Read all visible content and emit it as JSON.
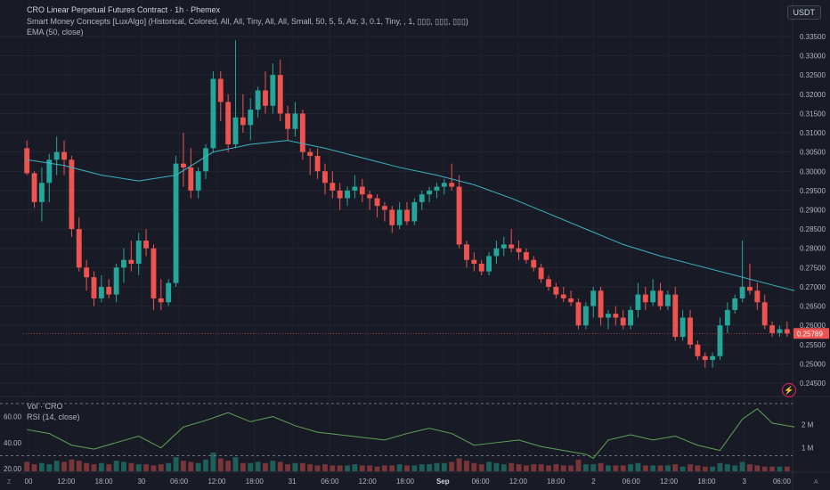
{
  "header": {
    "title": "CRO Linear Perpetual Futures Contract · 1h · Phemex",
    "indicator_smc": "Smart Money Concepts [LuxAlgo] (Historical, Colored, All, All, Tiny, All, All, Small, 50, 5, 5, Atr, 3, 0.1, Tiny, , 1, ▯▯▯, ▯▯▯, ▯▯▯)",
    "indicator_ema": "EMA (50, close)",
    "currency": "USDT"
  },
  "lower_pane": {
    "vol_label": "Vol · CRO",
    "rsi_label": "RSI (14, close)",
    "rsi_ticks": [
      "60.00",
      "40.00",
      "20.00"
    ],
    "vol_ticks": [
      "2 M",
      "1 M"
    ]
  },
  "price_ticks": [
    "0.33500",
    "0.33000",
    "0.32500",
    "0.32000",
    "0.31500",
    "0.31000",
    "0.30500",
    "0.30000",
    "0.29500",
    "0.29000",
    "0.28500",
    "0.28000",
    "0.27500",
    "0.27000",
    "0.26500",
    "0.26000",
    "0.25500",
    "0.25000",
    "0.24500"
  ],
  "last_price": "0.25789",
  "time_ticks": [
    "00",
    "12:00",
    "18:00",
    "30",
    "06:00",
    "12:00",
    "18:00",
    "31",
    "06:00",
    "12:00",
    "18:00",
    "Sep",
    "06:00",
    "12:00",
    "18:00",
    "2",
    "06:00",
    "12:00",
    "18:00",
    "3",
    "06:00"
  ],
  "edge_labels": {
    "z": "Z",
    "a": "A"
  },
  "colors": {
    "up": "#26a69a",
    "down": "#ef5350",
    "ema": "#3bb3c3",
    "rsi": "#5fa356",
    "background": "#181b25"
  },
  "chart_data": {
    "type": "candlestick",
    "title": "CRO Linear Perpetual Futures Contract · 1h · Phemex",
    "ylim": [
      0.242,
      0.338
    ],
    "candles": [
      [
        0.306,
        0.308,
        0.299,
        0.2995
      ],
      [
        0.2995,
        0.3,
        0.2905,
        0.292
      ],
      [
        0.292,
        0.301,
        0.287,
        0.297
      ],
      [
        0.297,
        0.3045,
        0.292,
        0.303
      ],
      [
        0.303,
        0.309,
        0.299,
        0.305
      ],
      [
        0.305,
        0.308,
        0.299,
        0.303
      ],
      [
        0.303,
        0.304,
        0.283,
        0.285
      ],
      [
        0.285,
        0.288,
        0.274,
        0.275
      ],
      [
        0.275,
        0.277,
        0.269,
        0.2725
      ],
      [
        0.2725,
        0.274,
        0.265,
        0.267
      ],
      [
        0.267,
        0.273,
        0.266,
        0.27
      ],
      [
        0.27,
        0.272,
        0.267,
        0.268
      ],
      [
        0.268,
        0.276,
        0.266,
        0.275
      ],
      [
        0.275,
        0.28,
        0.271,
        0.277
      ],
      [
        0.277,
        0.282,
        0.274,
        0.276
      ],
      [
        0.276,
        0.284,
        0.273,
        0.282
      ],
      [
        0.282,
        0.285,
        0.278,
        0.28
      ],
      [
        0.28,
        0.281,
        0.264,
        0.267
      ],
      [
        0.267,
        0.272,
        0.264,
        0.266
      ],
      [
        0.266,
        0.272,
        0.265,
        0.271
      ],
      [
        0.271,
        0.304,
        0.27,
        0.302
      ],
      [
        0.302,
        0.31,
        0.296,
        0.301
      ],
      [
        0.301,
        0.306,
        0.293,
        0.295
      ],
      [
        0.295,
        0.301,
        0.293,
        0.3
      ],
      [
        0.3,
        0.307,
        0.298,
        0.306
      ],
      [
        0.306,
        0.326,
        0.305,
        0.324
      ],
      [
        0.324,
        0.326,
        0.313,
        0.318
      ],
      [
        0.318,
        0.32,
        0.305,
        0.307
      ],
      [
        0.307,
        0.334,
        0.306,
        0.314
      ],
      [
        0.314,
        0.32,
        0.31,
        0.312
      ],
      [
        0.312,
        0.319,
        0.308,
        0.316
      ],
      [
        0.316,
        0.322,
        0.314,
        0.321
      ],
      [
        0.321,
        0.326,
        0.315,
        0.317
      ],
      [
        0.317,
        0.328,
        0.315,
        0.325
      ],
      [
        0.325,
        0.329,
        0.313,
        0.315
      ],
      [
        0.315,
        0.317,
        0.308,
        0.311
      ],
      [
        0.311,
        0.318,
        0.309,
        0.315
      ],
      [
        0.315,
        0.316,
        0.303,
        0.305
      ],
      [
        0.305,
        0.306,
        0.299,
        0.304
      ],
      [
        0.304,
        0.306,
        0.298,
        0.3
      ],
      [
        0.3,
        0.302,
        0.294,
        0.297
      ],
      [
        0.297,
        0.3,
        0.293,
        0.295
      ],
      [
        0.295,
        0.297,
        0.29,
        0.293
      ],
      [
        0.293,
        0.296,
        0.291,
        0.295
      ],
      [
        0.295,
        0.299,
        0.293,
        0.296
      ],
      [
        0.296,
        0.298,
        0.292,
        0.294
      ],
      [
        0.294,
        0.295,
        0.29,
        0.293
      ],
      [
        0.293,
        0.294,
        0.288,
        0.291
      ],
      [
        0.291,
        0.292,
        0.287,
        0.29
      ],
      [
        0.29,
        0.291,
        0.284,
        0.286
      ],
      [
        0.286,
        0.292,
        0.285,
        0.29
      ],
      [
        0.29,
        0.292,
        0.286,
        0.287
      ],
      [
        0.287,
        0.293,
        0.286,
        0.292
      ],
      [
        0.292,
        0.295,
        0.29,
        0.294
      ],
      [
        0.294,
        0.296,
        0.292,
        0.295
      ],
      [
        0.295,
        0.297,
        0.293,
        0.296
      ],
      [
        0.296,
        0.298,
        0.294,
        0.297
      ],
      [
        0.297,
        0.302,
        0.295,
        0.296
      ],
      [
        0.296,
        0.299,
        0.28,
        0.281
      ],
      [
        0.281,
        0.282,
        0.275,
        0.277
      ],
      [
        0.277,
        0.279,
        0.274,
        0.276
      ],
      [
        0.276,
        0.277,
        0.273,
        0.274
      ],
      [
        0.274,
        0.279,
        0.273,
        0.278
      ],
      [
        0.278,
        0.282,
        0.276,
        0.28
      ],
      [
        0.28,
        0.283,
        0.278,
        0.281
      ],
      [
        0.281,
        0.285,
        0.279,
        0.28
      ],
      [
        0.28,
        0.282,
        0.277,
        0.279
      ],
      [
        0.279,
        0.28,
        0.276,
        0.277
      ],
      [
        0.277,
        0.278,
        0.274,
        0.275
      ],
      [
        0.275,
        0.276,
        0.271,
        0.272
      ],
      [
        0.272,
        0.273,
        0.269,
        0.27
      ],
      [
        0.27,
        0.271,
        0.267,
        0.268
      ],
      [
        0.268,
        0.27,
        0.266,
        0.267
      ],
      [
        0.267,
        0.269,
        0.265,
        0.266
      ],
      [
        0.266,
        0.267,
        0.259,
        0.26
      ],
      [
        0.26,
        0.266,
        0.259,
        0.265
      ],
      [
        0.265,
        0.27,
        0.262,
        0.269
      ],
      [
        0.269,
        0.27,
        0.26,
        0.262
      ],
      [
        0.262,
        0.264,
        0.259,
        0.263
      ],
      [
        0.263,
        0.265,
        0.26,
        0.262
      ],
      [
        0.262,
        0.264,
        0.259,
        0.26
      ],
      [
        0.26,
        0.265,
        0.259,
        0.264
      ],
      [
        0.264,
        0.271,
        0.262,
        0.268
      ],
      [
        0.268,
        0.27,
        0.264,
        0.266
      ],
      [
        0.266,
        0.272,
        0.265,
        0.269
      ],
      [
        0.269,
        0.271,
        0.264,
        0.265
      ],
      [
        0.265,
        0.269,
        0.264,
        0.268
      ],
      [
        0.268,
        0.27,
        0.256,
        0.257
      ],
      [
        0.257,
        0.264,
        0.256,
        0.262
      ],
      [
        0.262,
        0.264,
        0.254,
        0.255
      ],
      [
        0.255,
        0.256,
        0.251,
        0.252
      ],
      [
        0.252,
        0.253,
        0.249,
        0.251
      ],
      [
        0.251,
        0.253,
        0.249,
        0.252
      ],
      [
        0.252,
        0.262,
        0.251,
        0.26
      ],
      [
        0.26,
        0.266,
        0.258,
        0.264
      ],
      [
        0.264,
        0.268,
        0.263,
        0.267
      ],
      [
        0.267,
        0.282,
        0.266,
        0.27
      ],
      [
        0.27,
        0.276,
        0.268,
        0.269
      ],
      [
        0.269,
        0.271,
        0.264,
        0.266
      ],
      [
        0.266,
        0.268,
        0.259,
        0.26
      ],
      [
        0.26,
        0.261,
        0.257,
        0.258
      ],
      [
        0.258,
        0.26,
        0.257,
        0.259
      ],
      [
        0.259,
        0.261,
        0.257,
        0.2579
      ]
    ],
    "ema_50": [
      [
        0,
        0.303
      ],
      [
        5,
        0.3015
      ],
      [
        10,
        0.299
      ],
      [
        15,
        0.2975
      ],
      [
        20,
        0.299
      ],
      [
        25,
        0.305
      ],
      [
        30,
        0.307
      ],
      [
        35,
        0.308
      ],
      [
        40,
        0.306
      ],
      [
        45,
        0.3035
      ],
      [
        50,
        0.301
      ],
      [
        55,
        0.299
      ],
      [
        60,
        0.2965
      ],
      [
        65,
        0.293
      ],
      [
        70,
        0.289
      ],
      [
        75,
        0.285
      ],
      [
        80,
        0.281
      ],
      [
        85,
        0.278
      ],
      [
        90,
        0.2755
      ],
      [
        95,
        0.273
      ],
      [
        100,
        0.2705
      ],
      [
        103,
        0.269
      ]
    ],
    "rsi_14": {
      "ylim": [
        18,
        72
      ],
      "points": [
        [
          0,
          50
        ],
        [
          3,
          47
        ],
        [
          6,
          38
        ],
        [
          9,
          35
        ],
        [
          12,
          40
        ],
        [
          15,
          45
        ],
        [
          18,
          36
        ],
        [
          21,
          52
        ],
        [
          24,
          57
        ],
        [
          27,
          63
        ],
        [
          30,
          56
        ],
        [
          33,
          60
        ],
        [
          36,
          53
        ],
        [
          39,
          48
        ],
        [
          42,
          46
        ],
        [
          45,
          44
        ],
        [
          48,
          42
        ],
        [
          51,
          47
        ],
        [
          54,
          51
        ],
        [
          57,
          47
        ],
        [
          60,
          38
        ],
        [
          63,
          40
        ],
        [
          66,
          42
        ],
        [
          69,
          37
        ],
        [
          72,
          34
        ],
        [
          75,
          31
        ],
        [
          76,
          28
        ],
        [
          78,
          42
        ],
        [
          81,
          46
        ],
        [
          84,
          42
        ],
        [
          87,
          45
        ],
        [
          90,
          38
        ],
        [
          93,
          34
        ],
        [
          96,
          58
        ],
        [
          98,
          66
        ],
        [
          100,
          55
        ],
        [
          103,
          52
        ]
      ]
    },
    "volume": {
      "ylim": [
        0,
        3000000
      ],
      "values": [
        400000,
        300000,
        350000,
        300000,
        450000,
        400000,
        500000,
        450000,
        350000,
        300000,
        350000,
        300000,
        450000,
        400000,
        350000,
        300000,
        300000,
        250000,
        300000,
        350000,
        600000,
        450000,
        400000,
        350000,
        500000,
        800000,
        550000,
        450000,
        600000,
        350000,
        350000,
        400000,
        350000,
        450000,
        400000,
        300000,
        350000,
        350000,
        300000,
        250000,
        300000,
        250000,
        250000,
        250000,
        300000,
        250000,
        250000,
        200000,
        250000,
        250000,
        300000,
        250000,
        250000,
        300000,
        300000,
        350000,
        350000,
        400000,
        550000,
        450000,
        350000,
        300000,
        400000,
        350000,
        300000,
        350000,
        300000,
        250000,
        300000,
        300000,
        250000,
        300000,
        250000,
        250000,
        500000,
        300000,
        300000,
        350000,
        250000,
        250000,
        250000,
        300000,
        350000,
        250000,
        250000,
        250000,
        250000,
        300000,
        200000,
        300000,
        250000,
        200000,
        200000,
        350000,
        300000,
        250000,
        400000,
        300000,
        250000,
        200000,
        200000,
        200000,
        200000
      ]
    },
    "hlines": {
      "rsi_70": 70,
      "rsi_30": 30
    }
  }
}
